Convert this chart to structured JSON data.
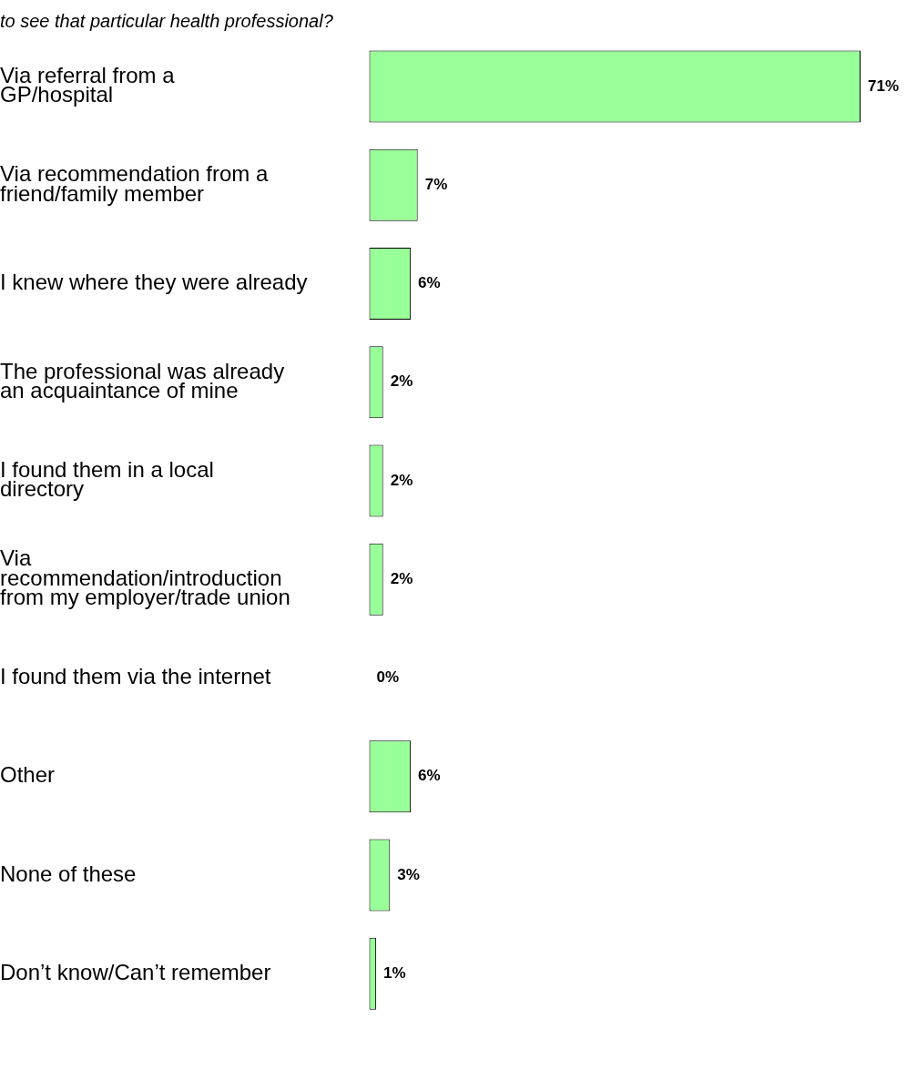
{
  "chart_data": {
    "type": "bar",
    "orientation": "horizontal",
    "title": "to see that particular health professional?",
    "categories": [
      "Via referral from a GP/hospital",
      "Via recommendation from a friend/family member",
      "I knew where they were already",
      "The professional was already an acquaintance of mine",
      "I found them in a local directory",
      "Via recommendation/introduction from my employer/trade union",
      "I found them via the internet",
      "Other",
      "None of these",
      "Don’t know/Can’t remember"
    ],
    "values": [
      71,
      7,
      6,
      2,
      2,
      2,
      0,
      6,
      3,
      1
    ],
    "value_labels": [
      "71%",
      "7%",
      "6%",
      "2%",
      "2%",
      "2%",
      "0%",
      "6%",
      "3%",
      "1%"
    ],
    "color": "#99ff99",
    "grid": false,
    "legend": false
  }
}
